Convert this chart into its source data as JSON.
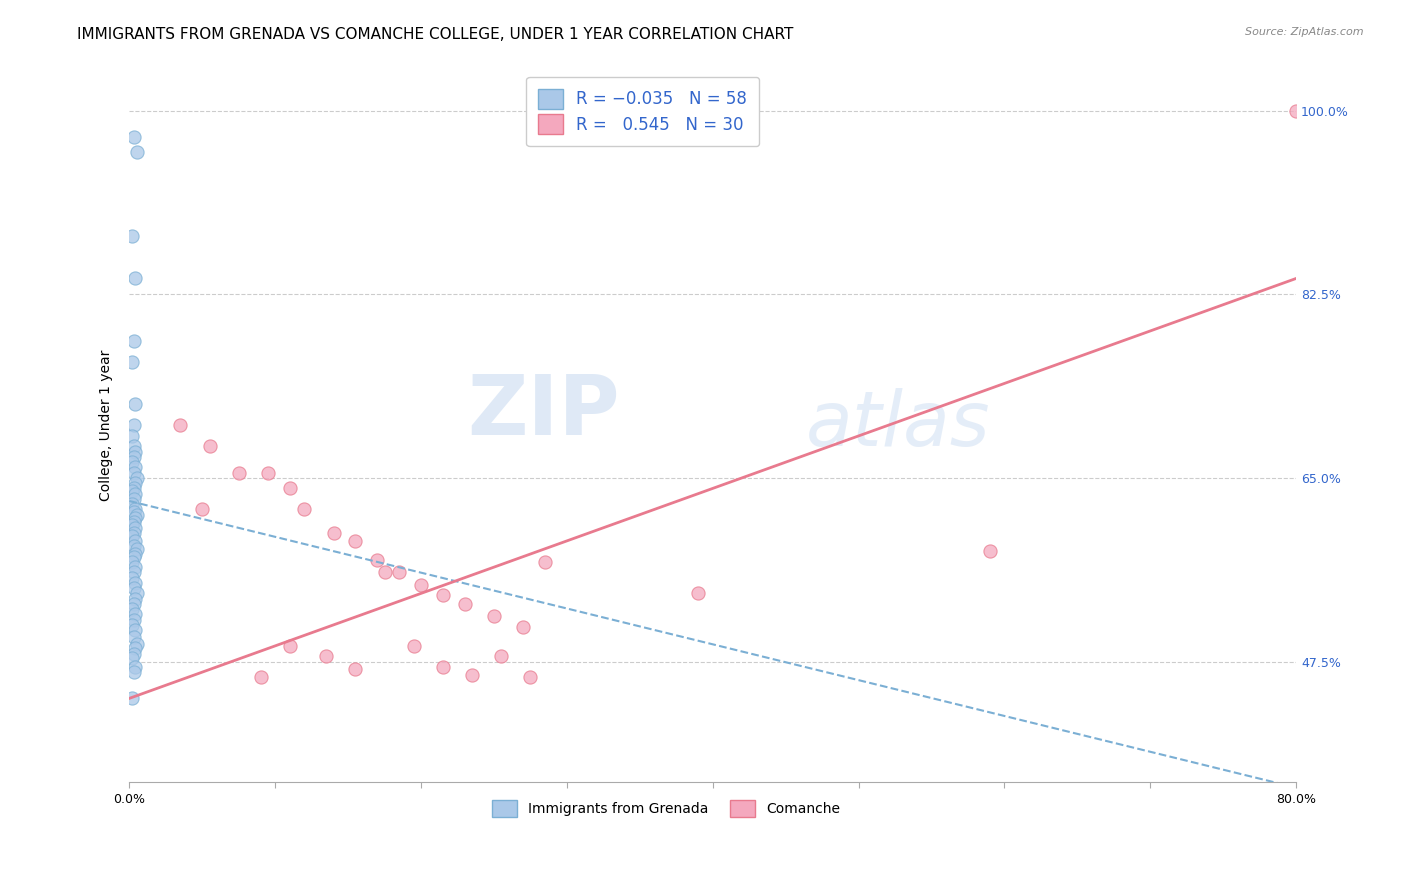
{
  "title": "IMMIGRANTS FROM GRENADA VS COMANCHE COLLEGE, UNDER 1 YEAR CORRELATION CHART",
  "source": "Source: ZipAtlas.com",
  "ylabel": "College, Under 1 year",
  "xlabel": "",
  "xlim": [
    0.0,
    0.8
  ],
  "ylim": [
    0.36,
    1.04
  ],
  "x_ticks": [
    0.0,
    0.1,
    0.2,
    0.3,
    0.4,
    0.5,
    0.6,
    0.7,
    0.8
  ],
  "y_tick_labels": [
    "47.5%",
    "65.0%",
    "82.5%",
    "100.0%"
  ],
  "y_ticks": [
    0.475,
    0.65,
    0.825,
    1.0
  ],
  "legend_labels_bottom": [
    "Immigrants from Grenada",
    "Comanche"
  ],
  "watermark": "ZIPatlas",
  "blue_scatter_x": [
    0.003,
    0.005,
    0.002,
    0.004,
    0.003,
    0.002,
    0.004,
    0.003,
    0.002,
    0.003,
    0.004,
    0.003,
    0.002,
    0.004,
    0.003,
    0.005,
    0.004,
    0.003,
    0.002,
    0.004,
    0.003,
    0.002,
    0.004,
    0.003,
    0.005,
    0.004,
    0.003,
    0.002,
    0.004,
    0.003,
    0.002,
    0.004,
    0.003,
    0.005,
    0.004,
    0.003,
    0.002,
    0.004,
    0.003,
    0.002,
    0.004,
    0.003,
    0.005,
    0.004,
    0.003,
    0.002,
    0.004,
    0.003,
    0.002,
    0.004,
    0.003,
    0.005,
    0.004,
    0.003,
    0.002,
    0.004,
    0.003,
    0.002
  ],
  "blue_scatter_y": [
    0.975,
    0.96,
    0.88,
    0.84,
    0.78,
    0.76,
    0.72,
    0.7,
    0.69,
    0.68,
    0.675,
    0.67,
    0.665,
    0.66,
    0.655,
    0.65,
    0.645,
    0.64,
    0.638,
    0.635,
    0.63,
    0.625,
    0.62,
    0.618,
    0.615,
    0.612,
    0.608,
    0.605,
    0.602,
    0.598,
    0.595,
    0.59,
    0.585,
    0.582,
    0.578,
    0.575,
    0.57,
    0.565,
    0.56,
    0.555,
    0.55,
    0.545,
    0.54,
    0.535,
    0.53,
    0.525,
    0.52,
    0.515,
    0.51,
    0.505,
    0.498,
    0.492,
    0.488,
    0.482,
    0.478,
    0.47,
    0.465,
    0.44
  ],
  "pink_scatter_x": [
    0.035,
    0.055,
    0.075,
    0.095,
    0.11,
    0.12,
    0.14,
    0.155,
    0.17,
    0.185,
    0.2,
    0.215,
    0.23,
    0.25,
    0.27,
    0.285,
    0.11,
    0.135,
    0.155,
    0.175,
    0.195,
    0.215,
    0.235,
    0.255,
    0.275,
    0.39,
    0.59,
    0.05,
    0.09,
    0.8
  ],
  "pink_scatter_y": [
    0.7,
    0.68,
    0.655,
    0.655,
    0.64,
    0.62,
    0.598,
    0.59,
    0.572,
    0.56,
    0.548,
    0.538,
    0.53,
    0.518,
    0.508,
    0.57,
    0.49,
    0.48,
    0.468,
    0.56,
    0.49,
    0.47,
    0.462,
    0.48,
    0.46,
    0.54,
    0.58,
    0.62,
    0.46,
    1.0
  ],
  "blue_line_x": [
    0.0,
    0.8
  ],
  "blue_line_y": [
    0.628,
    0.355
  ],
  "pink_line_x": [
    0.0,
    0.8
  ],
  "pink_line_y": [
    0.44,
    0.84
  ],
  "blue_color": "#7bafd4",
  "pink_color": "#e87a8e",
  "scatter_blue_color": "#aac8e8",
  "scatter_pink_color": "#f4a8be",
  "scatter_alpha": 0.75,
  "scatter_size": 90,
  "background_color": "#ffffff",
  "grid_color": "#cccccc",
  "title_fontsize": 11,
  "axis_label_fontsize": 10,
  "tick_fontsize": 9,
  "tick_color": "#3366cc"
}
